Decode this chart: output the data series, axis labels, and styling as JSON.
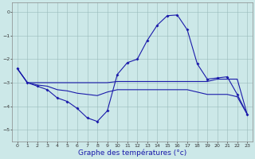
{
  "xlabel": "Graphe des températures (°c)",
  "background_color": "#cce8e8",
  "line_color": "#1a1aaa",
  "xlim": [
    -0.5,
    23.5
  ],
  "ylim": [
    -5.5,
    0.4
  ],
  "yticks": [
    0,
    -1,
    -2,
    -3,
    -4,
    -5
  ],
  "xticks": [
    0,
    1,
    2,
    3,
    4,
    5,
    6,
    7,
    8,
    9,
    10,
    11,
    12,
    13,
    14,
    15,
    16,
    17,
    18,
    19,
    20,
    21,
    22,
    23
  ],
  "line1_x": [
    0,
    1,
    2,
    3,
    4,
    5,
    6,
    7,
    8,
    9,
    10,
    11,
    12,
    13,
    14,
    15,
    16,
    17,
    18,
    19,
    20,
    21,
    22,
    23
  ],
  "line1_y": [
    -2.4,
    -3.0,
    -3.15,
    -3.3,
    -3.65,
    -3.8,
    -4.1,
    -4.5,
    -4.65,
    -4.2,
    -2.65,
    -2.15,
    -2.0,
    -1.2,
    -0.55,
    -0.15,
    -0.12,
    -0.75,
    -2.2,
    -2.85,
    -2.8,
    -2.75,
    -3.5,
    -4.35
  ],
  "line2_x": [
    0,
    1,
    2,
    3,
    4,
    5,
    6,
    7,
    8,
    9,
    10,
    11,
    12,
    13,
    14,
    15,
    16,
    17,
    18,
    19,
    20,
    21,
    22,
    23
  ],
  "line2_y": [
    -2.4,
    -3.0,
    -3.0,
    -3.0,
    -3.0,
    -3.0,
    -3.0,
    -3.0,
    -3.0,
    -3.0,
    -2.95,
    -2.95,
    -2.95,
    -2.95,
    -2.95,
    -2.95,
    -2.95,
    -2.95,
    -2.95,
    -2.95,
    -2.85,
    -2.85,
    -2.85,
    -4.35
  ],
  "line3_x": [
    0,
    1,
    2,
    3,
    4,
    5,
    6,
    7,
    8,
    9,
    10,
    11,
    12,
    13,
    14,
    15,
    16,
    17,
    18,
    19,
    20,
    21,
    22,
    23
  ],
  "line3_y": [
    -2.4,
    -3.0,
    -3.1,
    -3.15,
    -3.3,
    -3.35,
    -3.45,
    -3.5,
    -3.55,
    -3.4,
    -3.3,
    -3.3,
    -3.3,
    -3.3,
    -3.3,
    -3.3,
    -3.3,
    -3.3,
    -3.4,
    -3.5,
    -3.5,
    -3.5,
    -3.6,
    -4.35
  ],
  "grid_color": "#99bbbb",
  "tick_fontsize": 4.5,
  "xlabel_fontsize": 6.5
}
